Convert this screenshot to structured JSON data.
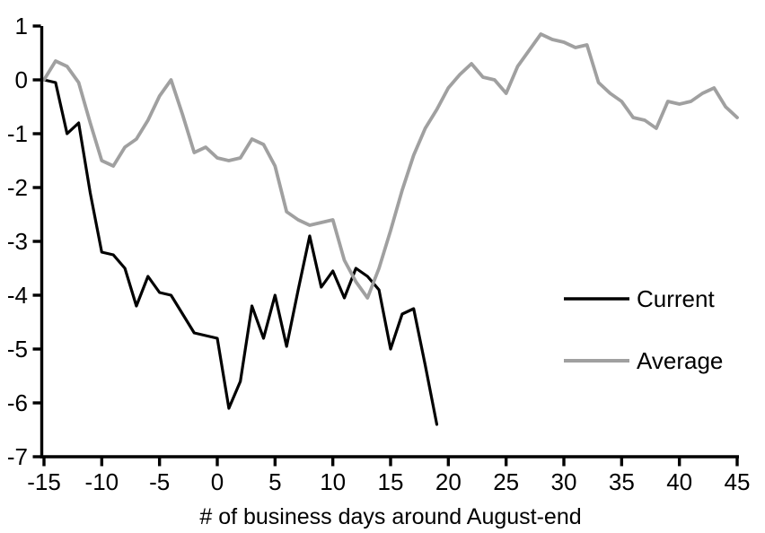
{
  "chart_data": {
    "type": "line",
    "title": "",
    "xlabel": "# of business days around August-end",
    "ylabel": "",
    "xlim": [
      -15,
      45
    ],
    "ylim": [
      -7,
      1
    ],
    "grid": false,
    "background": "#ffffff",
    "axis_color": "#000000",
    "legend_position": "right-middle",
    "x_ticks": [
      -15,
      -10,
      -5,
      0,
      5,
      10,
      15,
      20,
      25,
      30,
      35,
      40,
      45
    ],
    "x_tick_labels": [
      "-15",
      "-10",
      "-5",
      "0",
      "5",
      "10",
      "15",
      "20",
      "25",
      "30",
      "35",
      "40",
      "45"
    ],
    "y_ticks": [
      1,
      0,
      -1,
      -2,
      -3,
      -4,
      -5,
      -6,
      -7
    ],
    "y_tick_labels": [
      "1",
      "0",
      "-1",
      "-2",
      "-3",
      "-4",
      "-5",
      "-6",
      "-7"
    ],
    "series": [
      {
        "name": "Current",
        "color": "#000000",
        "x": [
          -15,
          -14,
          -13,
          -12,
          -11,
          -10,
          -9,
          -8,
          -7,
          -6,
          -5,
          -4,
          -3,
          -2,
          -1,
          0,
          1,
          2,
          3,
          4,
          5,
          6,
          7,
          8,
          9,
          10,
          11,
          12,
          13,
          14,
          15,
          16,
          17,
          18,
          19
        ],
        "values": [
          0,
          -0.05,
          -1.0,
          -0.8,
          -2.1,
          -3.2,
          -3.25,
          -3.5,
          -4.2,
          -3.65,
          -3.95,
          -4.0,
          -4.35,
          -4.7,
          -4.75,
          -4.8,
          -6.1,
          -5.6,
          -4.2,
          -4.8,
          -4.0,
          -4.95,
          -3.9,
          -2.9,
          -3.85,
          -3.55,
          -4.05,
          -3.5,
          -3.65,
          -3.9,
          -5.0,
          -4.35,
          -4.25,
          -5.3,
          -6.4
        ]
      },
      {
        "name": "Average",
        "color": "#a0a0a0",
        "x": [
          -15,
          -14,
          -13,
          -12,
          -11,
          -10,
          -9,
          -8,
          -7,
          -6,
          -5,
          -4,
          -3,
          -2,
          -1,
          0,
          1,
          2,
          3,
          4,
          5,
          6,
          7,
          8,
          9,
          10,
          11,
          12,
          13,
          14,
          15,
          16,
          17,
          18,
          19,
          20,
          21,
          22,
          23,
          24,
          25,
          26,
          27,
          28,
          29,
          30,
          31,
          32,
          33,
          34,
          35,
          36,
          37,
          38,
          39,
          40,
          41,
          42,
          43,
          44,
          45
        ],
        "values": [
          0,
          0.35,
          0.25,
          -0.05,
          -0.8,
          -1.5,
          -1.6,
          -1.25,
          -1.1,
          -0.75,
          -0.3,
          0.0,
          -0.65,
          -1.35,
          -1.25,
          -1.45,
          -1.5,
          -1.45,
          -1.1,
          -1.2,
          -1.6,
          -2.45,
          -2.6,
          -2.7,
          -2.65,
          -2.6,
          -3.35,
          -3.75,
          -4.05,
          -3.5,
          -2.8,
          -2.05,
          -1.4,
          -0.9,
          -0.55,
          -0.15,
          0.1,
          0.3,
          0.05,
          0.0,
          -0.25,
          0.25,
          0.55,
          0.85,
          0.75,
          0.7,
          0.6,
          0.65,
          -0.05,
          -0.25,
          -0.4,
          -0.7,
          -0.75,
          -0.9,
          -0.4,
          -0.45,
          -0.4,
          -0.25,
          -0.15,
          -0.5,
          -0.7
        ]
      }
    ]
  }
}
